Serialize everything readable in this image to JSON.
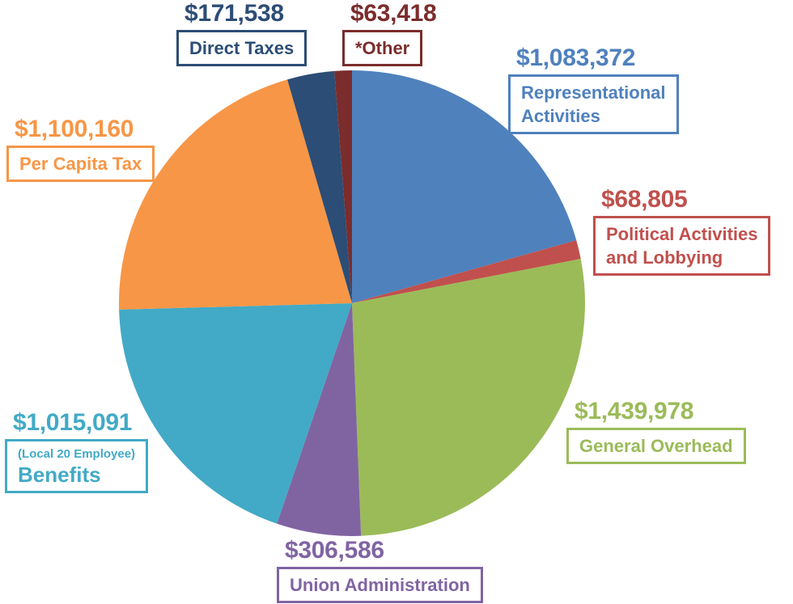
{
  "chart_data": {
    "type": "pie",
    "title": "",
    "start_angle_deg": 0,
    "direction": "clockwise",
    "legend_position": "callout-labels",
    "slices": [
      {
        "id": "representational",
        "label": "Representational Activities",
        "label_lines": [
          "Representational",
          "Activities"
        ],
        "value": 1083372,
        "amount_text": "$1,083,372",
        "color": "#4F81BD"
      },
      {
        "id": "political",
        "label": "Political Activities and Lobbying",
        "label_lines": [
          "Political Activities",
          "and Lobbying"
        ],
        "value": 68805,
        "amount_text": "$68,805",
        "color": "#C0504D"
      },
      {
        "id": "overhead",
        "label": "General Overhead",
        "label_lines": [
          "General Overhead"
        ],
        "value": 1439978,
        "amount_text": "$1,439,978",
        "color": "#9BBB59"
      },
      {
        "id": "union_admin",
        "label": "Union Administration",
        "label_lines": [
          "Union Administration"
        ],
        "value": 306586,
        "amount_text": "$306,586",
        "color": "#8064A2"
      },
      {
        "id": "benefits",
        "label": "(Local 20 Employee) Benefits",
        "label_lines": [
          "(Local 20 Employee)",
          "Benefits"
        ],
        "value": 1015091,
        "amount_text": "$1,015,091",
        "color": "#42AAC6"
      },
      {
        "id": "per_capita",
        "label": "Per Capita Tax",
        "label_lines": [
          "Per Capita Tax"
        ],
        "value": 1100160,
        "amount_text": "$1,100,160",
        "color": "#F79646"
      },
      {
        "id": "direct_taxes",
        "label": "Direct Taxes",
        "label_lines": [
          "Direct Taxes"
        ],
        "value": 171538,
        "amount_text": "$171,538",
        "color": "#2C4D75"
      },
      {
        "id": "other",
        "label": "*Other",
        "label_lines": [
          "*Other"
        ],
        "value": 63418,
        "amount_text": "$63,418",
        "color": "#7B2C2C"
      }
    ]
  }
}
